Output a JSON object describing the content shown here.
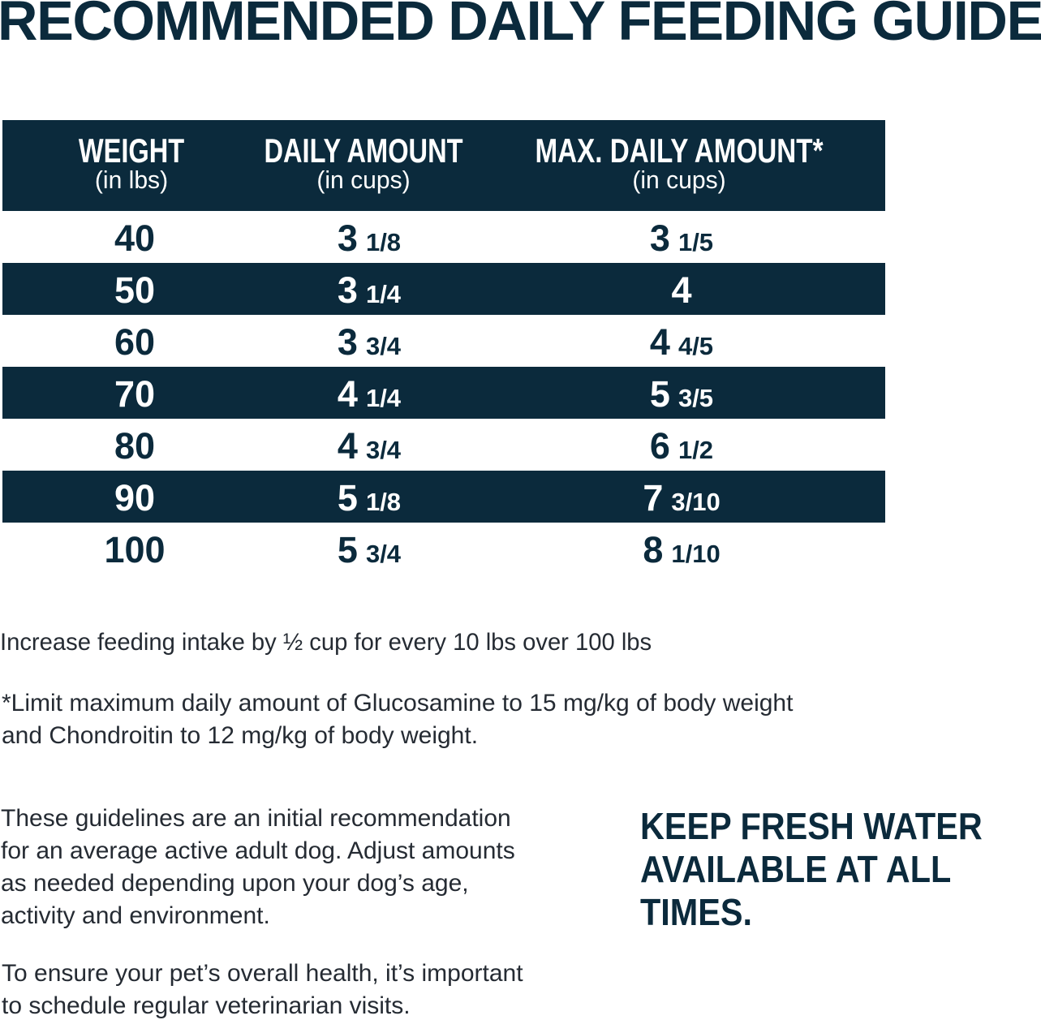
{
  "title": "RECOMMENDED DAILY FEEDING GUIDE",
  "colors": {
    "navy": "#0b2a3c",
    "white": "#ffffff",
    "body_text": "#252b33"
  },
  "table": {
    "header": {
      "weight_label": "WEIGHT",
      "weight_sub": "(in lbs)",
      "daily_label": "DAILY AMOUNT",
      "daily_sub": "(in cups)",
      "max_label": "MAX. DAILY AMOUNT*",
      "max_sub": "(in cups)"
    },
    "rows": [
      {
        "weight": "40",
        "daily_int": "3",
        "daily_frac": "1/8",
        "max_int": "3",
        "max_frac": "1/5"
      },
      {
        "weight": "50",
        "daily_int": "3",
        "daily_frac": "1/4",
        "max_int": "4",
        "max_frac": ""
      },
      {
        "weight": "60",
        "daily_int": "3",
        "daily_frac": "3/4",
        "max_int": "4",
        "max_frac": "4/5"
      },
      {
        "weight": "70",
        "daily_int": "4",
        "daily_frac": "1/4",
        "max_int": "5",
        "max_frac": "3/5"
      },
      {
        "weight": "80",
        "daily_int": "4",
        "daily_frac": "3/4",
        "max_int": "6",
        "max_frac": "1/2"
      },
      {
        "weight": "90",
        "daily_int": "5",
        "daily_frac": "1/8",
        "max_int": "7",
        "max_frac": "3/10"
      },
      {
        "weight": "100",
        "daily_int": "5",
        "daily_frac": "3/4",
        "max_int": "8",
        "max_frac": "1/10"
      }
    ]
  },
  "notes": {
    "increase": "Increase feeding intake by ½ cup for every 10 lbs over 100 lbs",
    "limit": "*Limit maximum daily amount of Glucosamine to 15 mg/kg of body weight\nand Chondroitin to 12 mg/kg of body weight.",
    "guidelines": "These guidelines are an initial recommendation\nfor an average active adult dog. Adjust amounts\nas needed depending upon your dog’s age,\nactivity and environment.",
    "vet": "To ensure your pet’s overall health, it’s important\nto schedule regular veterinarian visits.",
    "keep_water": "KEEP FRESH WATER\nAVAILABLE AT ALL\nTIMES."
  },
  "chart_data": {
    "type": "table",
    "title": "RECOMMENDED DAILY FEEDING GUIDE",
    "columns": [
      "WEIGHT (in lbs)",
      "DAILY AMOUNT (in cups)",
      "MAX. DAILY AMOUNT* (in cups)"
    ],
    "rows": [
      [
        "40",
        "3 1/8",
        "3 1/5"
      ],
      [
        "50",
        "3 1/4",
        "4"
      ],
      [
        "60",
        "3 3/4",
        "4 4/5"
      ],
      [
        "70",
        "4 1/4",
        "5 3/5"
      ],
      [
        "80",
        "4 3/4",
        "6 1/2"
      ],
      [
        "90",
        "5 1/8",
        "7 3/10"
      ],
      [
        "100",
        "5 3/4",
        "8 1/10"
      ]
    ]
  }
}
